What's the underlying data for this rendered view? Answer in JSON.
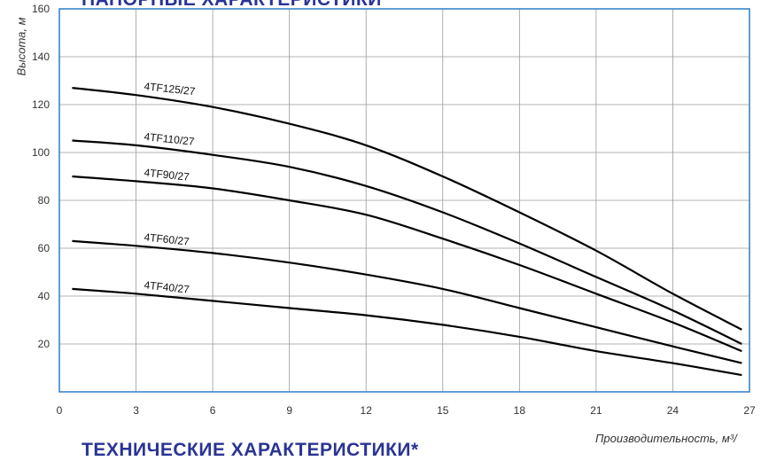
{
  "titles": {
    "top": "НАПОРНЫЕ ХАРАКТЕРИСТИКИ",
    "bottom": "ТЕХНИЧЕСКИЕ ХАРАКТЕРИСТИКИ*"
  },
  "chart_data": {
    "type": "line",
    "title": "",
    "xlabel": "Производительность, м³/",
    "ylabel": "Высота, м",
    "xlim": [
      0,
      27
    ],
    "ylim": [
      0,
      160
    ],
    "x_ticks": [
      "0",
      "3",
      "6",
      "9",
      "12",
      "15",
      "18",
      "21",
      "24",
      "27"
    ],
    "y_ticks": [
      "20",
      "40",
      "60",
      "80",
      "100",
      "120",
      "140",
      "160"
    ],
    "grid": true,
    "grid_x": [
      3,
      6,
      9,
      12,
      15,
      18,
      21,
      24
    ],
    "grid_y": [
      20,
      40,
      60,
      80,
      100,
      120,
      140
    ],
    "series": [
      {
        "name": "4TF125/27",
        "x": [
          0.5,
          3,
          6,
          9,
          12,
          15,
          18,
          21,
          24,
          26.7
        ],
        "y": [
          127,
          124,
          119,
          112,
          103,
          90,
          75,
          59,
          41,
          26
        ]
      },
      {
        "name": "4TF110/27",
        "x": [
          0.5,
          3,
          6,
          9,
          12,
          15,
          18,
          21,
          24,
          26.7
        ],
        "y": [
          105,
          103,
          99,
          94,
          86,
          75,
          62,
          48,
          34,
          20
        ]
      },
      {
        "name": "4TF90/27",
        "x": [
          0.5,
          3,
          6,
          9,
          12,
          15,
          18,
          21,
          24,
          26.7
        ],
        "y": [
          90,
          88,
          85,
          80,
          74,
          64,
          53,
          41,
          29,
          17
        ]
      },
      {
        "name": "4TF60/27",
        "x": [
          0.5,
          3,
          6,
          9,
          12,
          15,
          18,
          21,
          24,
          26.7
        ],
        "y": [
          63,
          61,
          58,
          54,
          49,
          43,
          35,
          27,
          19,
          12
        ]
      },
      {
        "name": "4TF40/27",
        "x": [
          0.5,
          3,
          6,
          9,
          12,
          15,
          18,
          21,
          24,
          26.7
        ],
        "y": [
          43,
          41,
          38,
          35,
          32,
          28,
          23,
          17,
          12,
          7
        ]
      }
    ],
    "colors": {
      "line": "#000000",
      "grid": "#9a9a9a",
      "frame": "#3a86c8",
      "title": "#2a3494"
    }
  }
}
